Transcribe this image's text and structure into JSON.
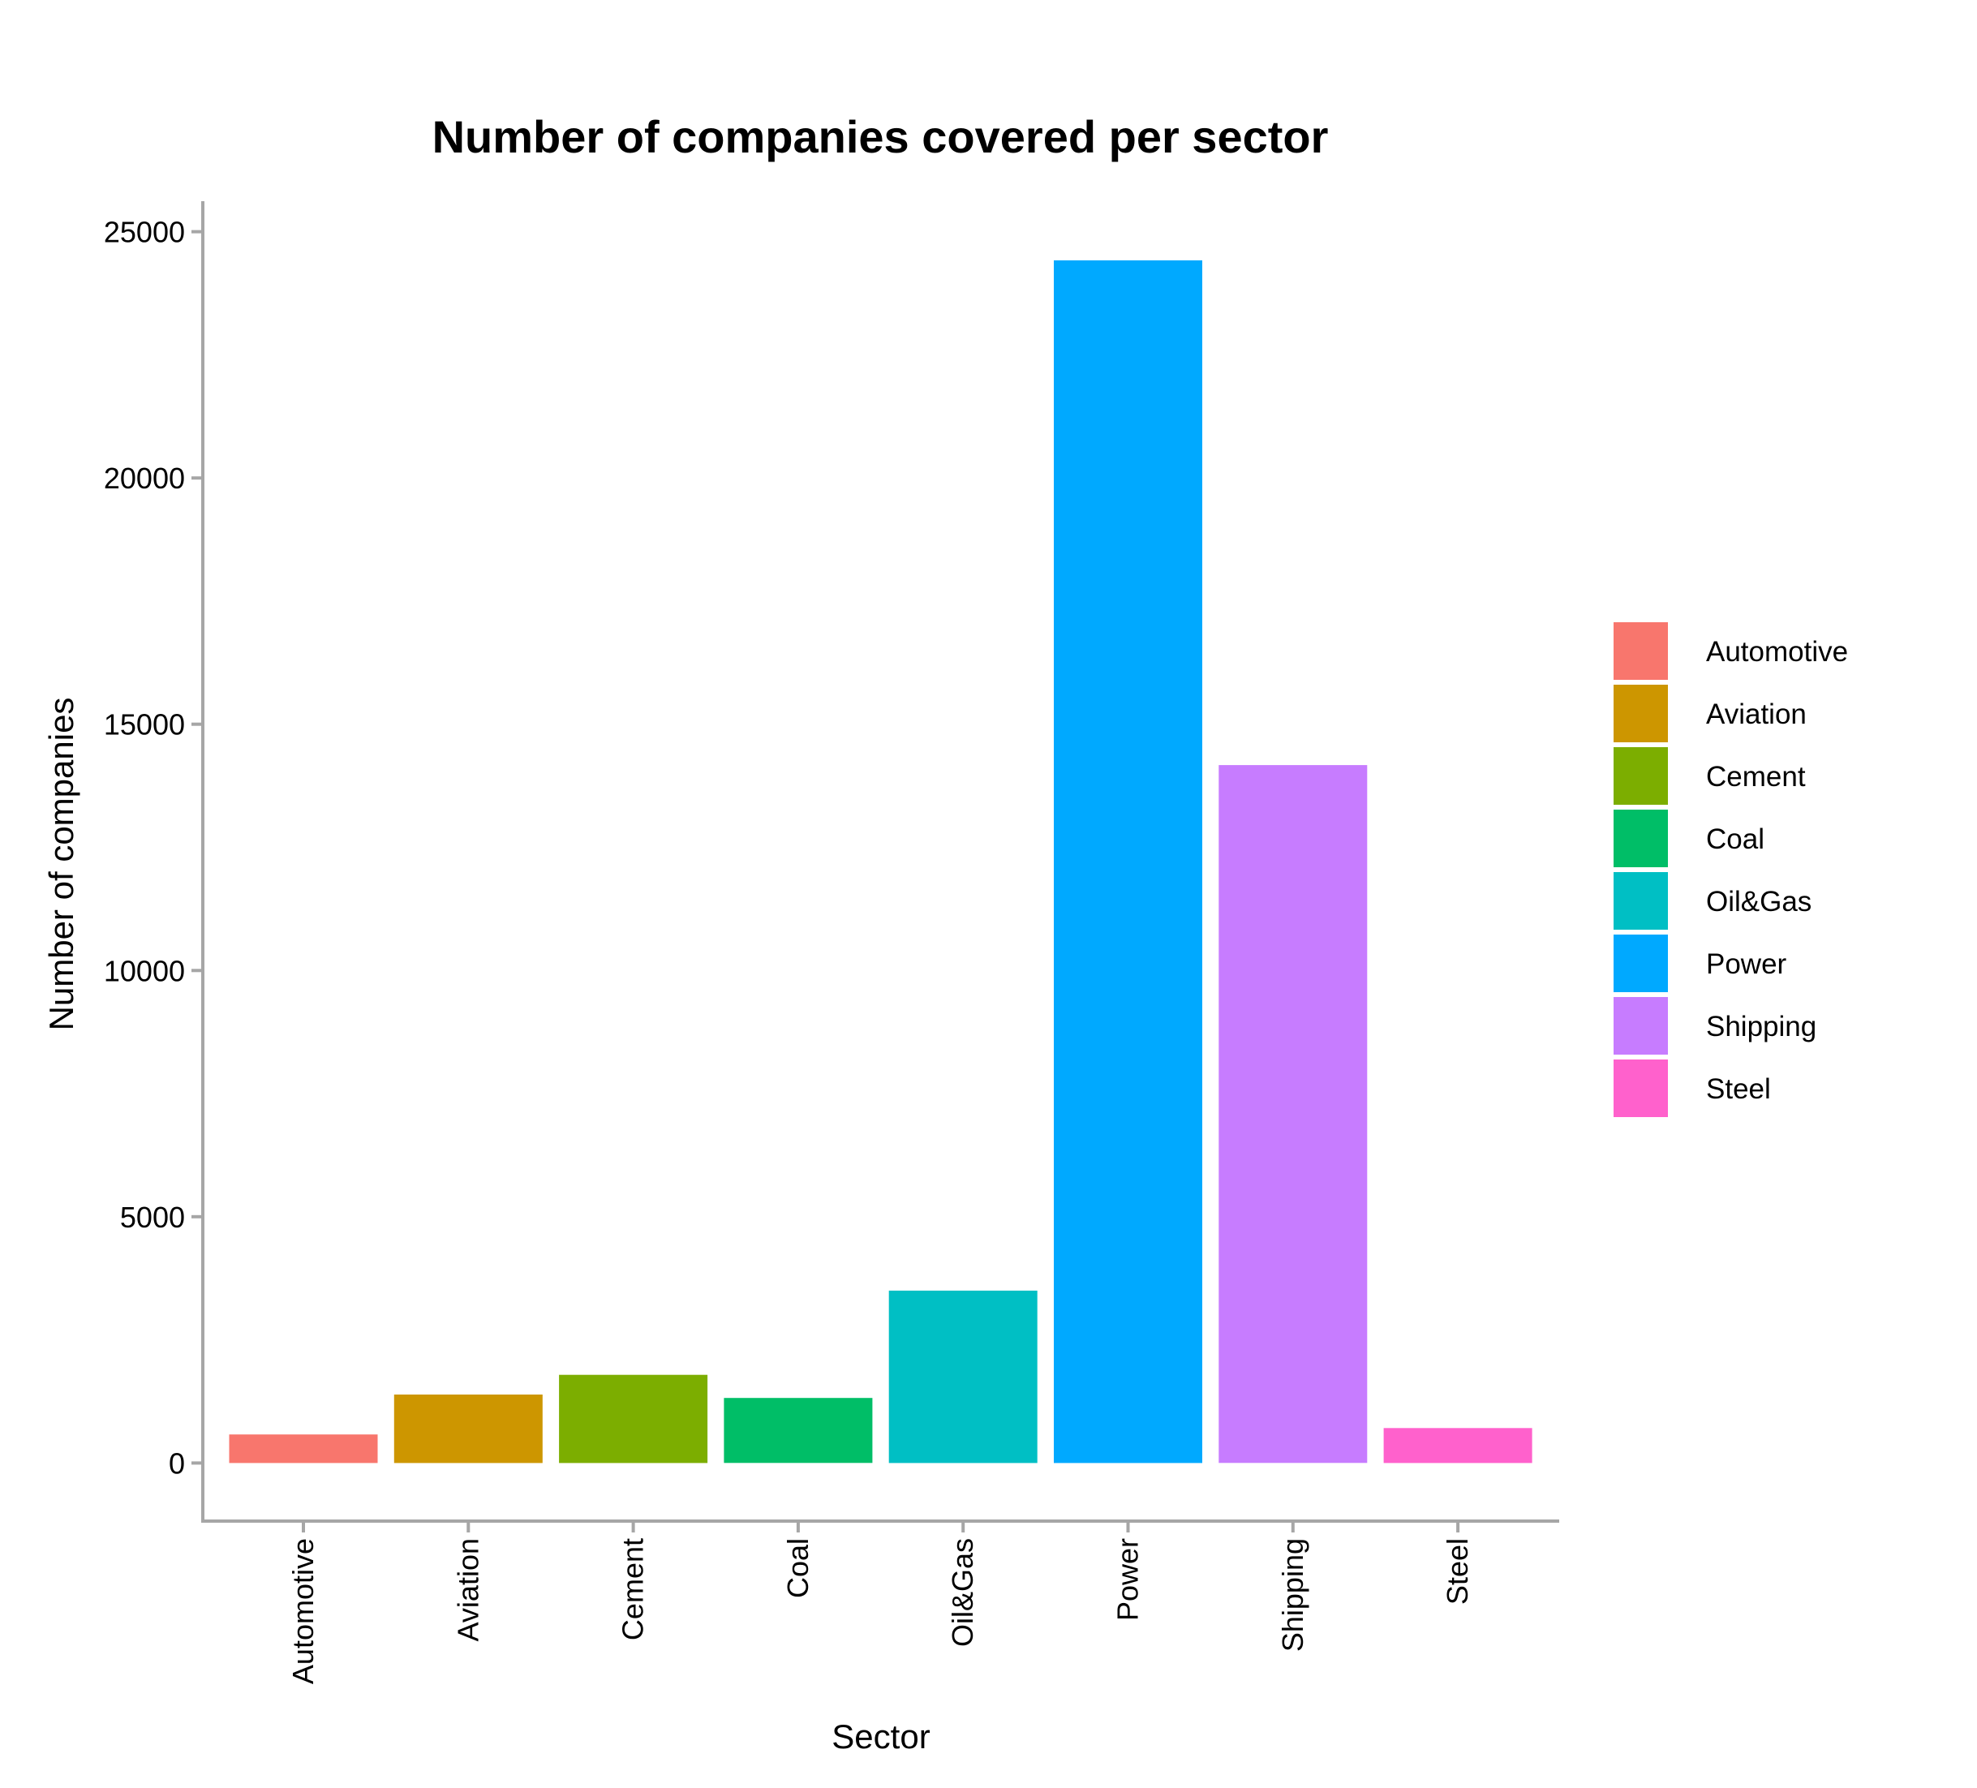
{
  "chart_data": {
    "type": "bar",
    "title": "Number of companies covered per sector",
    "xlabel": "Sector",
    "ylabel": "Number of companies",
    "categories": [
      "Automotive",
      "Aviation",
      "Cement",
      "Coal",
      "Oil&Gas",
      "Power",
      "Shipping",
      "Steel"
    ],
    "values": [
      580,
      1390,
      1790,
      1320,
      3500,
      24420,
      14170,
      710
    ],
    "colors": [
      "#F8766D",
      "#CD9600",
      "#7CAE00",
      "#00BE67",
      "#00BFC4",
      "#00A9FF",
      "#C77CFF",
      "#FF61CC"
    ],
    "ylim": [
      -1180,
      25620
    ],
    "yticks": [
      0,
      5000,
      10000,
      15000,
      20000,
      25000
    ],
    "grid": false,
    "legend_position": "right",
    "legend_entries": [
      "Automotive",
      "Aviation",
      "Cement",
      "Coal",
      "Oil&Gas",
      "Power",
      "Shipping",
      "Steel"
    ]
  }
}
